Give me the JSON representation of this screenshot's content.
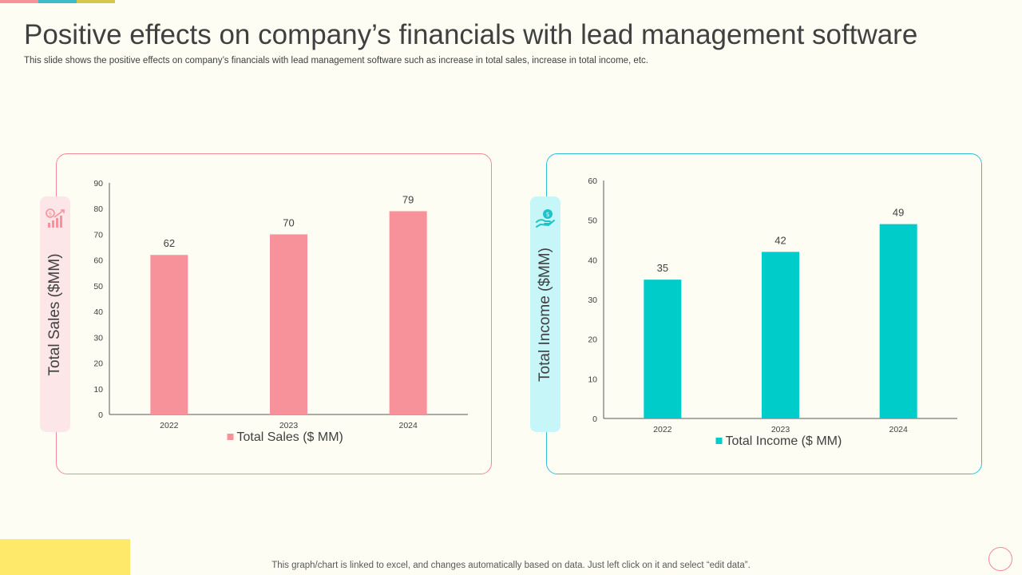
{
  "title": "Positive effects on company’s financials with lead management software",
  "subtitle": "This slide shows the positive effects on company’s financials with lead management software such as increase in total sales, increase in total income, etc.",
  "footer": "This graph/chart is linked to excel,  and changes automatically based on data. Just left click on it and select “edit data”.",
  "colors": {
    "pink": "#f7929b",
    "cyan": "#00ccc9",
    "accent_teal": "#3bbdc8",
    "accent_yellow": "#d8c64a",
    "footer_yellow": "#ffe96b"
  },
  "icons": {
    "sales": "money-growth-icon",
    "income": "hand-money-icon"
  },
  "chart_data": [
    {
      "type": "bar",
      "title": "",
      "side_label": "Total Sales ($MM)",
      "categories": [
        "2022",
        "2023",
        "2024"
      ],
      "series": [
        {
          "name": "Total Sales ($ MM)",
          "values": [
            62,
            70,
            79
          ]
        }
      ],
      "ylim": [
        0,
        90
      ],
      "yticks": [
        0,
        10,
        20,
        30,
        40,
        50,
        60,
        70,
        80,
        90
      ],
      "xlabel": "",
      "ylabel": "",
      "legend": "bottom",
      "grid": false
    },
    {
      "type": "bar",
      "title": "",
      "side_label": "Total Income ($MM)",
      "categories": [
        "2022",
        "2023",
        "2024"
      ],
      "series": [
        {
          "name": "Total Income ($ MM)",
          "values": [
            35,
            42,
            49
          ]
        }
      ],
      "ylim": [
        0,
        60
      ],
      "yticks": [
        0,
        10,
        20,
        30,
        40,
        50,
        60
      ],
      "xlabel": "",
      "ylabel": "",
      "legend": "bottom",
      "grid": false
    }
  ]
}
